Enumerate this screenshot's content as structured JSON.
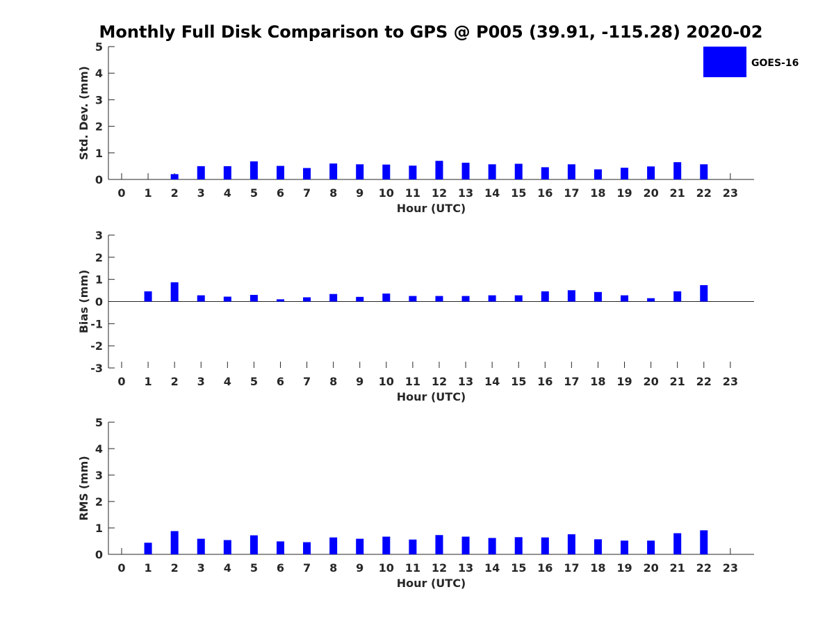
{
  "figure": {
    "title": "Monthly Full Disk Comparison to GPS @ P005 (39.91, -115.28) 2020-02",
    "legend": {
      "label": "GOES-16",
      "color": "#0000ff",
      "placement": "top-right"
    }
  },
  "chart_data": [
    {
      "type": "bar",
      "ylabel": "Std. Dev. (mm)",
      "xlabel": "Hour (UTC)",
      "categories": [
        "0",
        "1",
        "2",
        "3",
        "4",
        "5",
        "6",
        "7",
        "8",
        "9",
        "10",
        "11",
        "12",
        "13",
        "14",
        "15",
        "16",
        "17",
        "18",
        "19",
        "20",
        "21",
        "22",
        "23"
      ],
      "ylim": [
        0,
        5
      ],
      "yticks": [
        "0",
        "1",
        "2",
        "3",
        "4",
        "5"
      ],
      "series": [
        {
          "name": "GOES-16",
          "color": "#0000ff",
          "values": [
            null,
            null,
            0.2,
            0.5,
            0.5,
            0.68,
            0.51,
            0.43,
            0.6,
            0.57,
            0.56,
            0.52,
            0.7,
            0.63,
            0.57,
            0.59,
            0.46,
            0.57,
            0.38,
            0.44,
            0.49,
            0.65,
            0.57,
            null
          ]
        }
      ]
    },
    {
      "type": "bar",
      "ylabel": "Bias (mm)",
      "xlabel": "Hour (UTC)",
      "categories": [
        "0",
        "1",
        "2",
        "3",
        "4",
        "5",
        "6",
        "7",
        "8",
        "9",
        "10",
        "11",
        "12",
        "13",
        "14",
        "15",
        "16",
        "17",
        "18",
        "19",
        "20",
        "21",
        "22",
        "23"
      ],
      "ylim": [
        -3,
        3
      ],
      "yticks": [
        "-3",
        "-2",
        "-1",
        "0",
        "1",
        "2",
        "3"
      ],
      "series": [
        {
          "name": "GOES-16",
          "color": "#0000ff",
          "values": [
            null,
            0.46,
            0.87,
            0.28,
            0.22,
            0.3,
            0.1,
            0.19,
            0.34,
            0.21,
            0.36,
            0.25,
            0.25,
            0.25,
            0.28,
            0.28,
            0.46,
            0.51,
            0.43,
            0.28,
            0.15,
            0.46,
            0.74,
            null
          ]
        }
      ]
    },
    {
      "type": "bar",
      "ylabel": "RMS (mm)",
      "xlabel": "Hour (UTC)",
      "categories": [
        "0",
        "1",
        "2",
        "3",
        "4",
        "5",
        "6",
        "7",
        "8",
        "9",
        "10",
        "11",
        "12",
        "13",
        "14",
        "15",
        "16",
        "17",
        "18",
        "19",
        "20",
        "21",
        "22",
        "23"
      ],
      "ylim": [
        0,
        5
      ],
      "yticks": [
        "0",
        "1",
        "2",
        "3",
        "4",
        "5"
      ],
      "series": [
        {
          "name": "GOES-16",
          "color": "#0000ff",
          "values": [
            null,
            0.44,
            0.88,
            0.59,
            0.54,
            0.72,
            0.49,
            0.46,
            0.64,
            0.59,
            0.67,
            0.56,
            0.73,
            0.67,
            0.62,
            0.65,
            0.64,
            0.76,
            0.57,
            0.52,
            0.52,
            0.8,
            0.91,
            null
          ]
        }
      ]
    }
  ]
}
